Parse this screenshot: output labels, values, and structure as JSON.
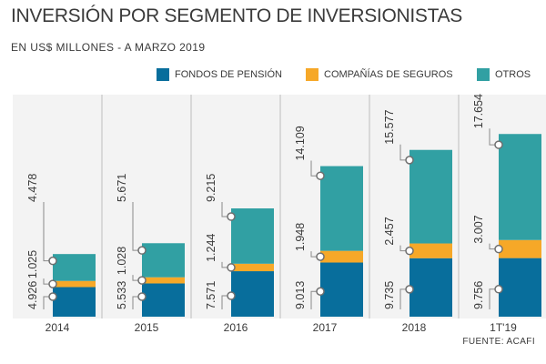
{
  "title": "INVERSIÓN POR SEGMENTO DE INVERSIONISTAS",
  "subtitle": "EN US$ MILLONES - A MARZO 2019",
  "source": "FUENTE: ACAFI",
  "colors": {
    "fondos": "#086e9c",
    "companias": "#f6a828",
    "otros": "#31a0a3",
    "panel": "#f3f3f3",
    "text": "#3a3a3a"
  },
  "legend": [
    {
      "label": "FONDOS DE PENSIÓN",
      "color": "#086e9c"
    },
    {
      "label": "COMPAÑÍAS DE SEGUROS",
      "color": "#f6a828"
    },
    {
      "label": "OTROS",
      "color": "#31a0a3"
    }
  ],
  "chart_data": {
    "type": "bar",
    "stacked": true,
    "categories": [
      "2014",
      "2015",
      "2016",
      "2017",
      "2018",
      "1T'19"
    ],
    "series": [
      {
        "name": "FONDOS DE PENSIÓN",
        "values": [
          4926,
          5533,
          7571,
          9013,
          9735,
          9756
        ],
        "labels": [
          "4.926",
          "5.533",
          "7.571",
          "9.013",
          "9.735",
          "9.756"
        ]
      },
      {
        "name": "COMPAÑÍAS DE SEGUROS",
        "values": [
          1025,
          1028,
          1244,
          1948,
          2457,
          3007
        ],
        "labels": [
          "1.025",
          "1.028",
          "1.244",
          "1.948",
          "2.457",
          "3.007"
        ]
      },
      {
        "name": "OTROS",
        "values": [
          4478,
          5671,
          9215,
          14109,
          15577,
          17654
        ],
        "labels": [
          "4.478",
          "5.671",
          "9.215",
          "14.109",
          "15.577",
          "17.654"
        ]
      }
    ],
    "title": "INVERSIÓN POR SEGMENTO DE INVERSIONISTAS",
    "legend_position": "top-right",
    "grid": false
  }
}
